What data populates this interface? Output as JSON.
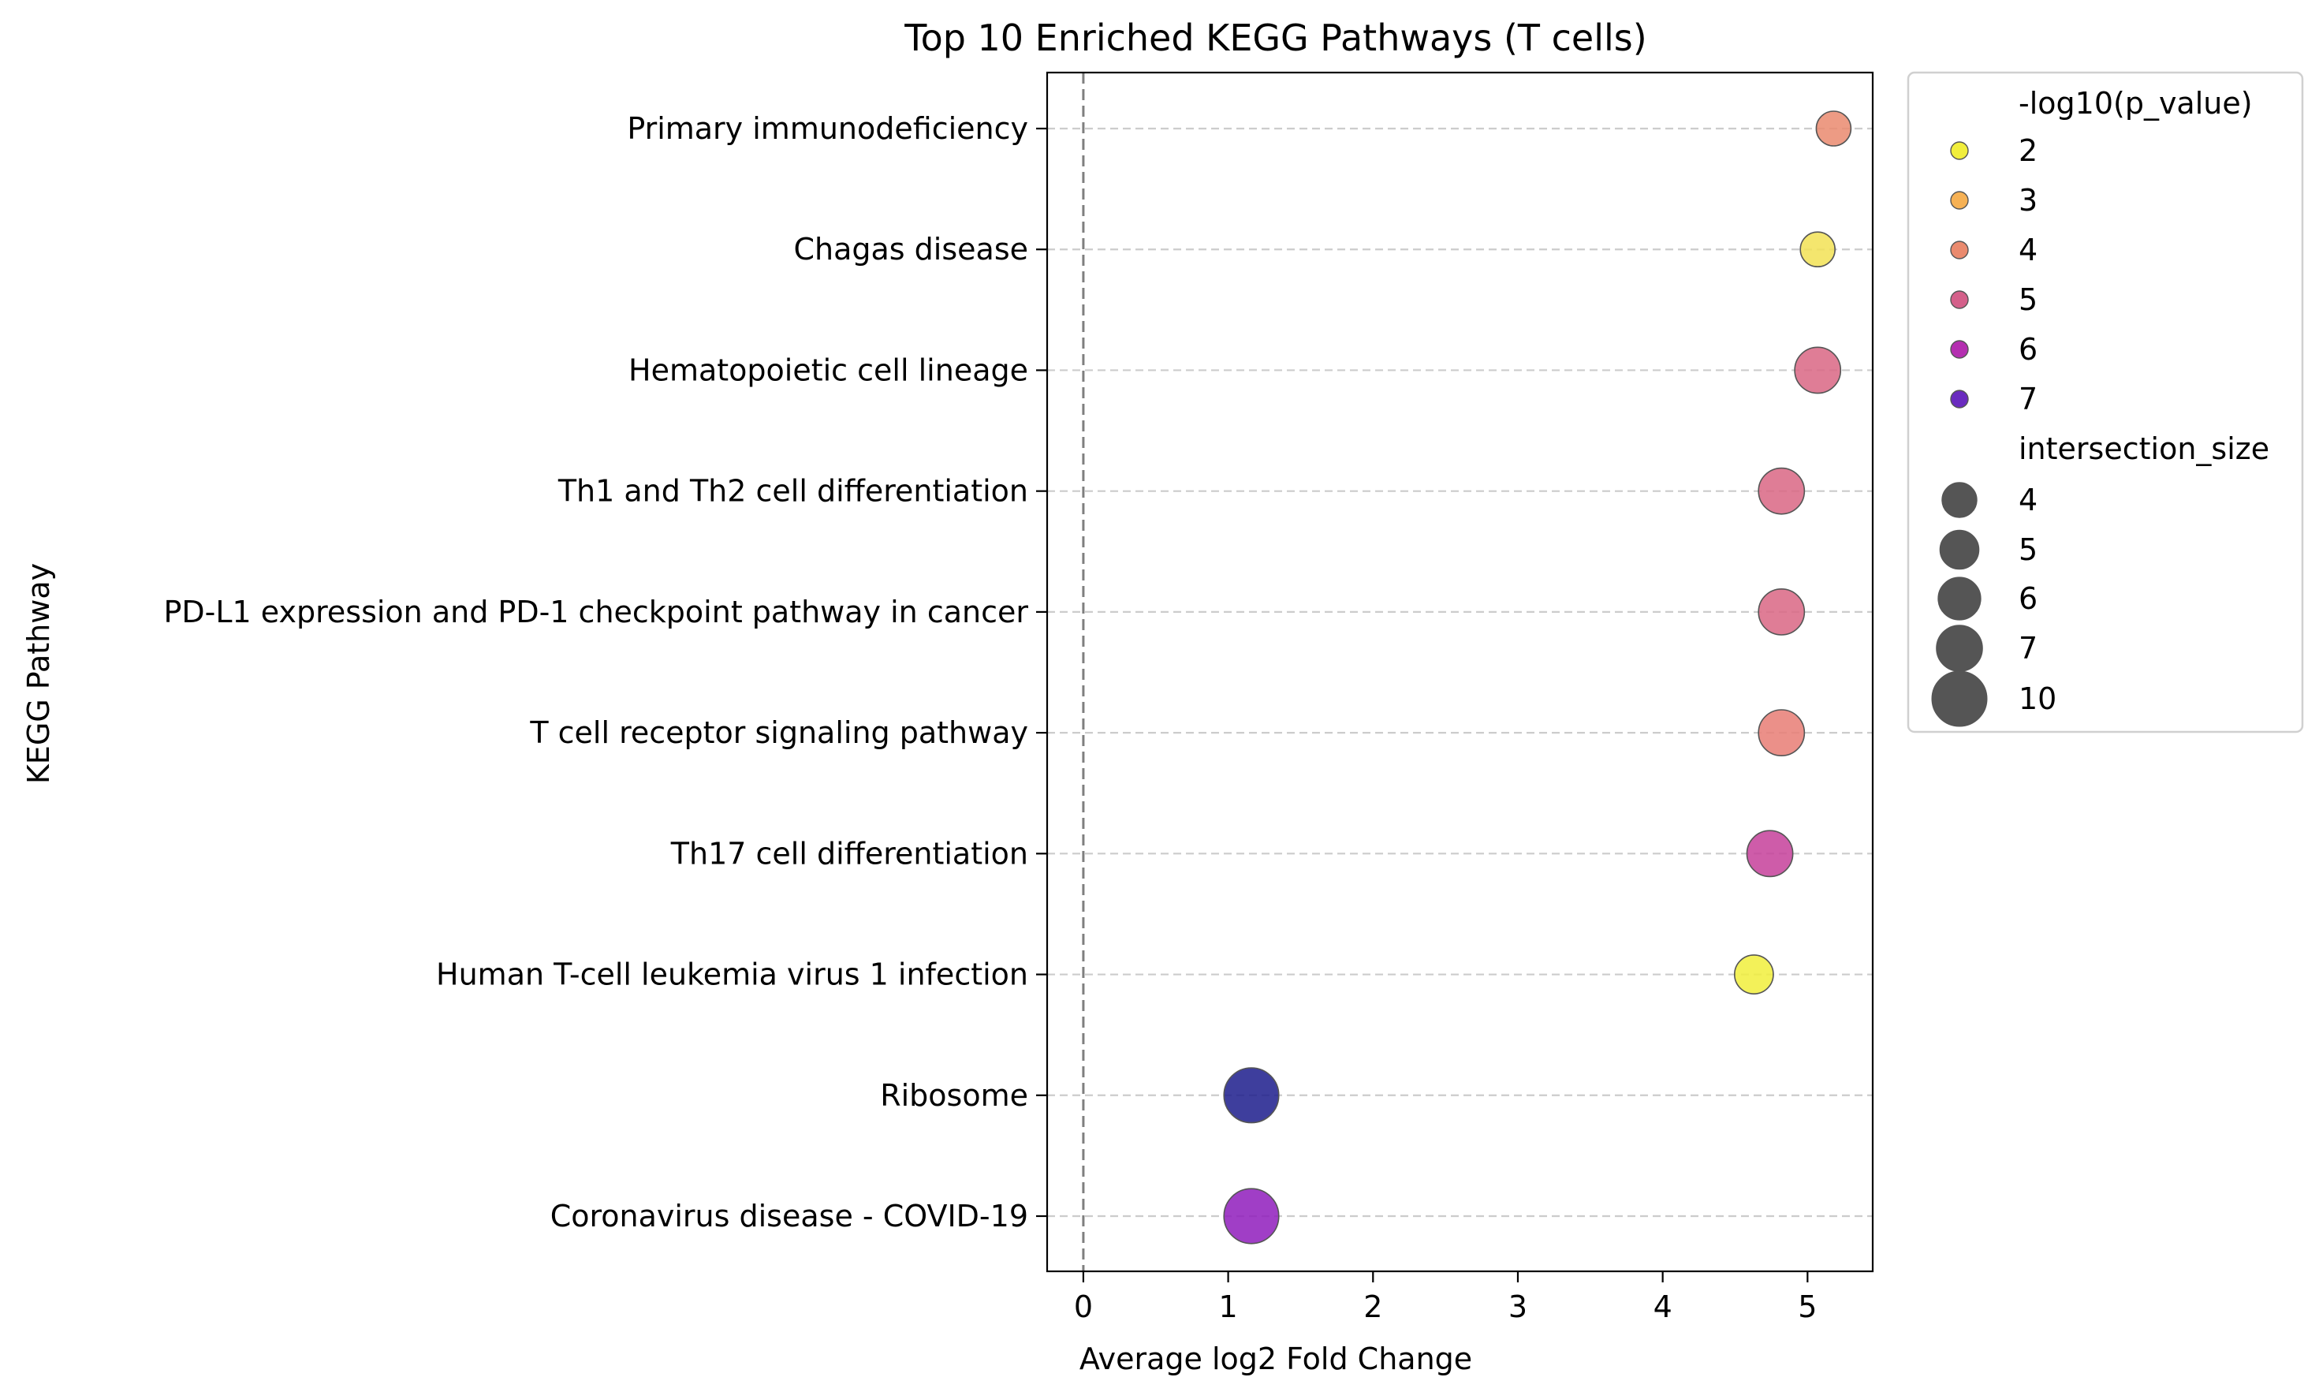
{
  "chart_data": {
    "type": "scatter",
    "title": "Top 10 Enriched KEGG Pathways (T cells)",
    "xlabel": "Average log2 Fold Change",
    "ylabel": "KEGG Pathway",
    "xlim": [
      -0.25,
      5.45
    ],
    "xticks": [
      "0",
      "1",
      "2",
      "3",
      "4",
      "5"
    ],
    "grid": "horizontal dashed",
    "reference_line": {
      "x": 0,
      "style": "dashed"
    },
    "categories": [
      "Primary immunodeficiency",
      "Chagas disease",
      "Hematopoietic cell lineage",
      "Th1 and Th2 cell differentiation",
      "PD-L1 expression and PD-1 checkpoint pathway in cancer",
      "T cell receptor signaling pathway",
      "Th17 cell differentiation",
      "Human T-cell leukemia virus 1 infection",
      "Ribosome",
      "Coronavirus disease - COVID-19"
    ],
    "points": [
      {
        "category": "Primary immunodeficiency",
        "x": 5.18,
        "neg_log10_p": 4.0,
        "intersection_size": 4,
        "color": "#ea8a6e"
      },
      {
        "category": "Chagas disease",
        "x": 5.07,
        "neg_log10_p": 2.3,
        "intersection_size": 4,
        "color": "#f2e255"
      },
      {
        "category": "Hematopoietic cell lineage",
        "x": 5.07,
        "neg_log10_p": 4.9,
        "intersection_size": 7,
        "color": "#d96684"
      },
      {
        "category": "Th1 and Th2 cell differentiation",
        "x": 4.82,
        "neg_log10_p": 4.9,
        "intersection_size": 7,
        "color": "#d96684"
      },
      {
        "category": "PD-L1 expression and PD-1 checkpoint pathway in cancer",
        "x": 4.82,
        "neg_log10_p": 4.9,
        "intersection_size": 7,
        "color": "#d96684"
      },
      {
        "category": "T cell receptor signaling pathway",
        "x": 4.82,
        "neg_log10_p": 4.4,
        "intersection_size": 7,
        "color": "#e77d74"
      },
      {
        "category": "Th17 cell differentiation",
        "x": 4.74,
        "neg_log10_p": 5.4,
        "intersection_size": 7,
        "color": "#c6409a"
      },
      {
        "category": "Human T-cell leukemia virus 1 infection",
        "x": 4.63,
        "neg_log10_p": 2.0,
        "intersection_size": 5,
        "color": "#f1ee3c"
      },
      {
        "category": "Ribosome",
        "x": 1.16,
        "neg_log10_p": 7.6,
        "intersection_size": 10,
        "color": "#1c1c8c"
      },
      {
        "category": "Coronavirus disease - COVID-19",
        "x": 1.16,
        "neg_log10_p": 6.2,
        "intersection_size": 10,
        "color": "#8f1cbc"
      }
    ],
    "legend": {
      "placement": "outside right",
      "color_title": "-log10(p_value)",
      "color_entries": [
        {
          "label": "2",
          "color": "#f1ee3c"
        },
        {
          "label": "3",
          "color": "#f6b154"
        },
        {
          "label": "4",
          "color": "#ea8a6e"
        },
        {
          "label": "5",
          "color": "#d4608a"
        },
        {
          "label": "6",
          "color": "#b42fb0"
        },
        {
          "label": "7",
          "color": "#6a2bbf"
        }
      ],
      "size_title": "intersection_size",
      "size_entries": [
        {
          "label": "4",
          "size": 4
        },
        {
          "label": "5",
          "size": 5
        },
        {
          "label": "6",
          "size": 6
        },
        {
          "label": "7",
          "size": 7
        },
        {
          "label": "10",
          "size": 10
        }
      ]
    }
  }
}
